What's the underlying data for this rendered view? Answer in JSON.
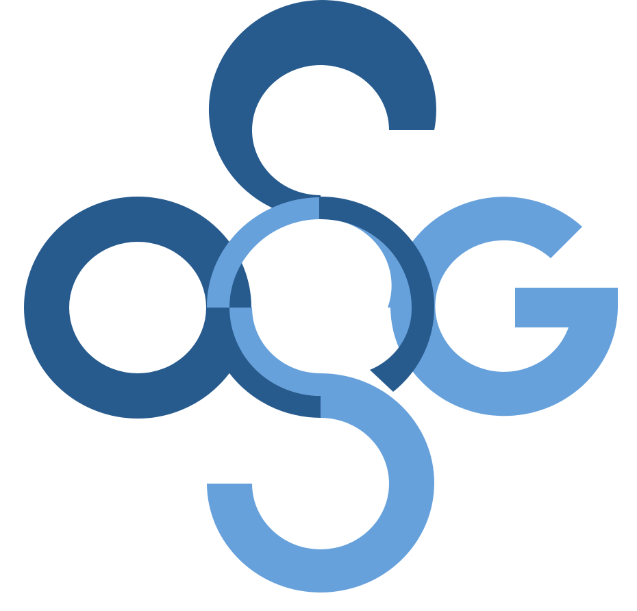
{
  "logo": {
    "lettering": "OSG S O G",
    "colors": {
      "dark": "#275b8e",
      "light": "#67a1dc",
      "background": "#ffffff"
    },
    "icons": [
      "logo-mark"
    ]
  }
}
